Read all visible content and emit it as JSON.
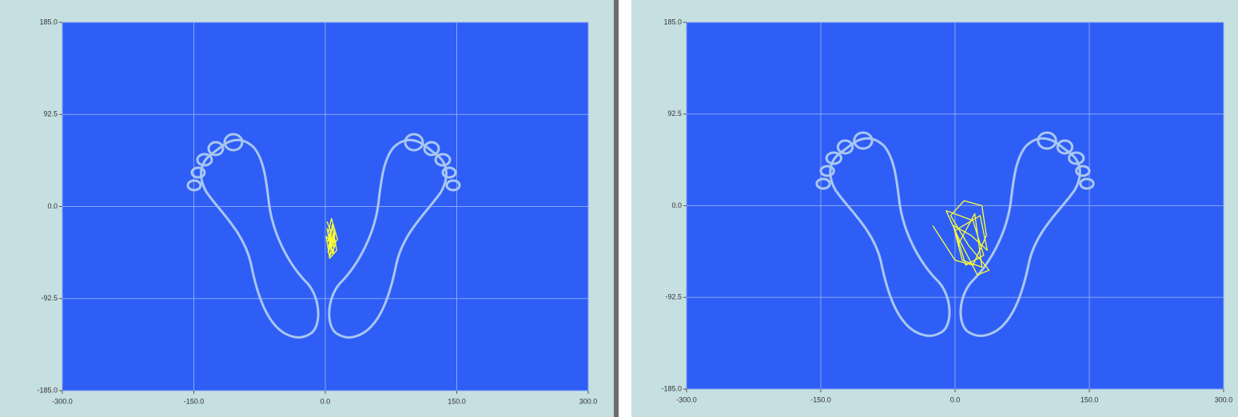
{
  "chart_data": [
    {
      "type": "line",
      "color": "#ffff33",
      "grid": true,
      "x": [
        2,
        6,
        3,
        8,
        4,
        10,
        5,
        12,
        3,
        7,
        14,
        6,
        2,
        9,
        11,
        4,
        8,
        13,
        5,
        1,
        7,
        10,
        3,
        9
      ],
      "values": [
        -15,
        -25,
        -35,
        -20,
        -45,
        -30,
        -50,
        -38,
        -28,
        -12,
        -33,
        -42,
        -22,
        -48,
        -26,
        -40,
        -18,
        -44,
        -52,
        -30,
        -36,
        -24,
        -46,
        -32
      ],
      "xlim": [
        -300,
        300
      ],
      "xticks": [
        {
          "value": -300,
          "label": "-300.0"
        },
        {
          "value": -150,
          "label": "-150.0"
        },
        {
          "value": 0,
          "label": "0.0"
        },
        {
          "value": 150,
          "label": "150.0"
        },
        {
          "value": 300,
          "label": "300.0"
        }
      ],
      "ylim": [
        -185,
        185
      ],
      "yticks": [
        {
          "value": -185,
          "label": "-185.0"
        },
        {
          "value": -92.5,
          "label": "-92.5"
        },
        {
          "value": 0,
          "label": "0.0"
        },
        {
          "value": 92.5,
          "label": "92.5"
        },
        {
          "value": 185,
          "label": "185.0"
        }
      ]
    },
    {
      "type": "line",
      "color": "#ffff33",
      "grid": true,
      "x": [
        -25,
        0,
        20,
        35,
        30,
        10,
        -5,
        15,
        38,
        25,
        5,
        -10,
        20,
        32,
        12,
        0,
        28,
        36,
        18,
        -2,
        8,
        30,
        22,
        3
      ],
      "values": [
        -20,
        -55,
        -60,
        -30,
        0,
        5,
        -10,
        -40,
        -65,
        -70,
        -35,
        -5,
        -15,
        -50,
        -60,
        -25,
        -10,
        -45,
        -30,
        -20,
        -55,
        -62,
        -8,
        -40
      ],
      "xlim": [
        -300,
        300
      ],
      "xticks": [
        {
          "value": -300,
          "label": "-300.0"
        },
        {
          "value": -150,
          "label": "-150.0"
        },
        {
          "value": 0,
          "label": "0.0"
        },
        {
          "value": 150,
          "label": "150.0"
        },
        {
          "value": 300,
          "label": "300.0"
        }
      ],
      "ylim": [
        -185,
        185
      ],
      "yticks": [
        {
          "value": -185,
          "label": "-185.0"
        },
        {
          "value": -92.5,
          "label": "-92.5"
        },
        {
          "value": 0,
          "label": "0.0"
        },
        {
          "value": 92.5,
          "label": "92.5"
        },
        {
          "value": 185,
          "label": "185.0"
        }
      ]
    }
  ]
}
